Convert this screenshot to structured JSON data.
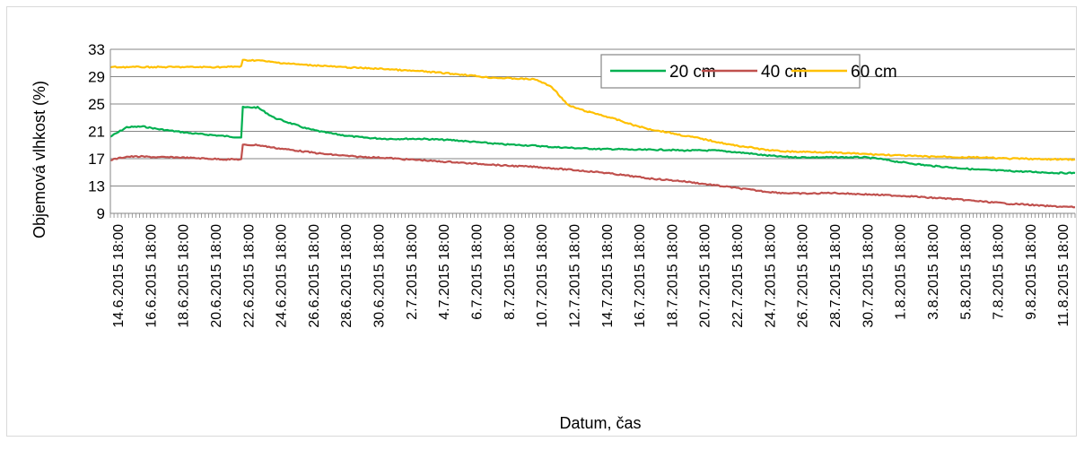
{
  "chart_data": {
    "type": "line",
    "title": "",
    "xlabel": "Datum, čas",
    "ylabel": "Objemová vlhkost (%)",
    "ylim": [
      9,
      33
    ],
    "yticks": [
      9,
      13,
      17,
      21,
      25,
      29,
      33
    ],
    "grid": true,
    "legend_position": "top-right",
    "x_tick_labels": [
      "14.6.2015 18:00",
      "16.6.2015 18:00",
      "18.6.2015 18:00",
      "20.6.2015 18:00",
      "22.6.2015 18:00",
      "24.6.2015 18:00",
      "26.6.2015 18:00",
      "28.6.2015 18:00",
      "30.6.2015 18:00",
      "2.7.2015 18:00",
      "4.7.2015 18:00",
      "6.7.2015 18:00",
      "8.7.2015 18:00",
      "10.7.2015 18:00",
      "12.7.2015 18:00",
      "14.7.2015 18:00",
      "16.7.2015 18:00",
      "18.7.2015 18:00",
      "20.7.2015 18:00",
      "22.7.2015 18:00",
      "24.7.2015 18:00",
      "26.7.2015 18:00",
      "28.7.2015 18:00",
      "30.7.2015 18:00",
      "1.8.2015 18:00",
      "3.8.2015 18:00",
      "5.8.2015 18:00",
      "7.8.2015 18:00",
      "9.8.2015 18:00",
      "11.8.2015 18:00"
    ],
    "x": [
      "14.6.2015 18:00",
      "15.6.2015 18:00",
      "16.6.2015 18:00",
      "17.6.2015 18:00",
      "18.6.2015 18:00",
      "19.6.2015 18:00",
      "20.6.2015 18:00",
      "21.6.2015 18:00",
      "22.6.2015 18:00",
      "23.6.2015 00:00",
      "24.6.2015 18:00",
      "25.6.2015 18:00",
      "26.6.2015 18:00",
      "27.6.2015 18:00",
      "28.6.2015 18:00",
      "29.6.2015 18:00",
      "30.6.2015 18:00",
      "1.7.2015 18:00",
      "2.7.2015 18:00",
      "3.7.2015 18:00",
      "4.7.2015 18:00",
      "5.7.2015 18:00",
      "6.7.2015 18:00",
      "7.7.2015 18:00",
      "8.7.2015 18:00",
      "9.7.2015 18:00",
      "10.7.2015 18:00",
      "11.7.2015 18:00",
      "12.7.2015 18:00",
      "13.7.2015 18:00",
      "14.7.2015 18:00",
      "15.7.2015 18:00",
      "16.7.2015 18:00",
      "17.7.2015 18:00",
      "18.7.2015 18:00",
      "19.7.2015 18:00",
      "20.7.2015 18:00",
      "21.7.2015 18:00",
      "22.7.2015 18:00",
      "23.7.2015 18:00",
      "24.7.2015 18:00",
      "25.7.2015 18:00",
      "26.7.2015 18:00",
      "27.7.2015 18:00",
      "28.7.2015 18:00",
      "29.7.2015 18:00",
      "30.7.2015 18:00",
      "31.7.2015 18:00",
      "1.8.2015 18:00",
      "2.8.2015 18:00",
      "3.8.2015 18:00",
      "4.8.2015 18:00",
      "5.8.2015 18:00",
      "6.8.2015 18:00",
      "7.8.2015 18:00",
      "8.8.2015 18:00",
      "9.8.2015 18:00",
      "10.8.2015 18:00",
      "11.8.2015 18:00",
      "12.8.2015 18:00"
    ],
    "series": [
      {
        "name": "20 cm",
        "color": "#00b050",
        "values": [
          20.2,
          21.6,
          21.7,
          21.3,
          21.0,
          20.7,
          20.5,
          20.3,
          20.1,
          24.5,
          23.0,
          22.2,
          21.4,
          20.9,
          20.5,
          20.2,
          20.0,
          19.9,
          19.9,
          19.9,
          19.8,
          19.7,
          19.5,
          19.3,
          19.1,
          19.0,
          18.9,
          18.7,
          18.6,
          18.5,
          18.4,
          18.4,
          18.3,
          18.3,
          18.3,
          18.2,
          18.2,
          18.2,
          18.0,
          17.8,
          17.5,
          17.3,
          17.2,
          17.2,
          17.2,
          17.2,
          17.2,
          17.0,
          16.6,
          16.3,
          16.0,
          15.8,
          15.6,
          15.4,
          15.3,
          15.2,
          15.1,
          15.0,
          14.9,
          14.9
        ]
      },
      {
        "name": "40 cm",
        "color": "#c0504d",
        "values": [
          16.8,
          17.3,
          17.3,
          17.2,
          17.2,
          17.1,
          17.0,
          16.9,
          16.9,
          19.0,
          18.6,
          18.3,
          18.0,
          17.7,
          17.5,
          17.3,
          17.2,
          17.1,
          16.9,
          16.8,
          16.6,
          16.5,
          16.3,
          16.2,
          16.0,
          15.9,
          15.8,
          15.6,
          15.4,
          15.2,
          15.0,
          14.7,
          14.4,
          14.1,
          13.9,
          13.7,
          13.4,
          13.1,
          12.8,
          12.5,
          12.2,
          12.0,
          11.9,
          11.9,
          12.0,
          11.9,
          11.8,
          11.7,
          11.6,
          11.5,
          11.3,
          11.2,
          11.0,
          10.8,
          10.6,
          10.4,
          10.3,
          10.1,
          10.0,
          9.9
        ]
      },
      {
        "name": "60 cm",
        "color": "#ffc000",
        "values": [
          30.4,
          30.4,
          30.4,
          30.4,
          30.4,
          30.4,
          30.4,
          30.4,
          30.5,
          31.4,
          31.1,
          30.9,
          30.7,
          30.6,
          30.4,
          30.3,
          30.2,
          30.1,
          29.9,
          29.8,
          29.6,
          29.4,
          29.2,
          28.9,
          28.8,
          28.7,
          28.6,
          27.5,
          24.8,
          24.0,
          23.4,
          22.7,
          21.9,
          21.3,
          20.9,
          20.4,
          20.0,
          19.5,
          19.0,
          18.7,
          18.3,
          18.1,
          18.0,
          18.0,
          17.9,
          17.8,
          17.7,
          17.6,
          17.5,
          17.4,
          17.3,
          17.3,
          17.2,
          17.2,
          17.1,
          17.0,
          17.0,
          16.9,
          16.9,
          16.9
        ]
      }
    ]
  }
}
